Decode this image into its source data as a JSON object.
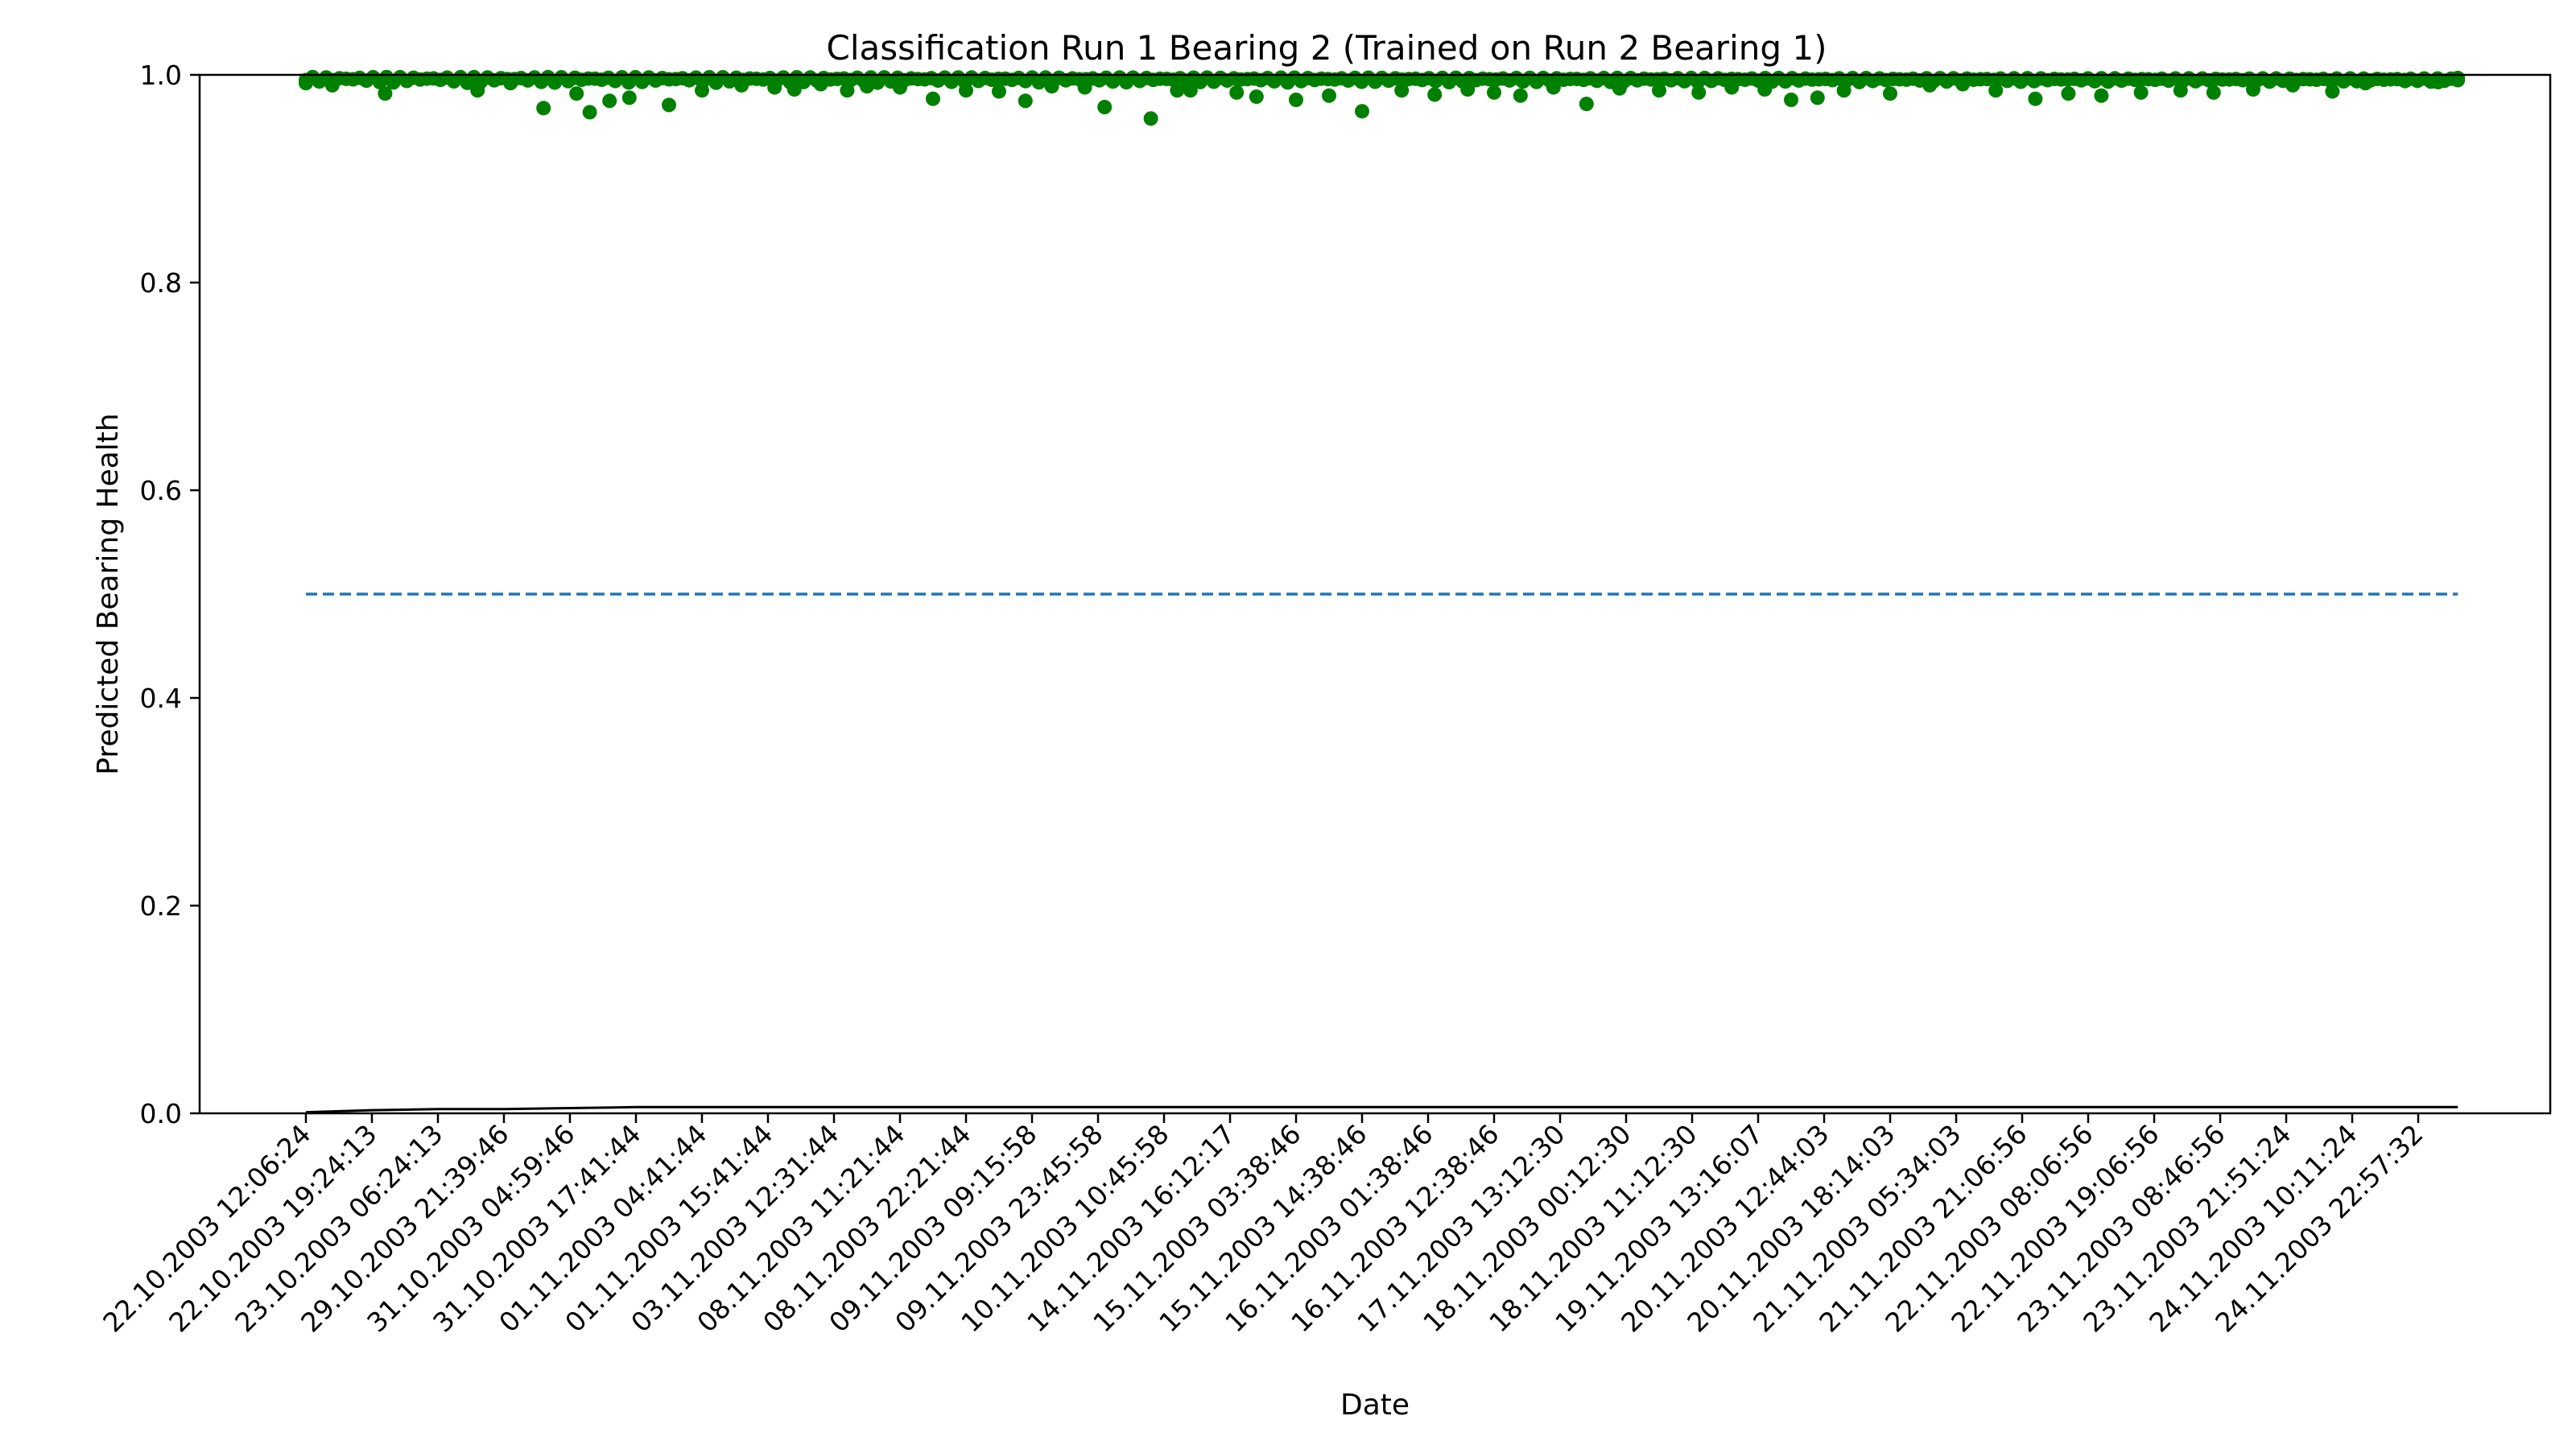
{
  "chart_data": {
    "type": "scatter",
    "title": "Classification Run 1 Bearing 2 (Trained on Run 2 Bearing 1)",
    "xlabel": "Date",
    "ylabel": "Predicted Bearing Health",
    "ylim": [
      0.0,
      1.0
    ],
    "yticks": [
      "0.0",
      "0.2",
      "0.4",
      "0.6",
      "0.8",
      "1.0"
    ],
    "xticks": [
      "22.10.2003 12:06:24",
      "22.10.2003 19:24:13",
      "23.10.2003 06:24:13",
      "29.10.2003 21:39:46",
      "31.10.2003 04:59:46",
      "31.10.2003 17:41:44",
      "01.11.2003 04:41:44",
      "01.11.2003 15:41:44",
      "03.11.2003 12:31:44",
      "08.11.2003 11:21:44",
      "08.11.2003 22:21:44",
      "09.11.2003 09:15:58",
      "09.11.2003 23:45:58",
      "10.11.2003 10:45:58",
      "14.11.2003 16:12:17",
      "15.11.2003 03:38:46",
      "15.11.2003 14:38:46",
      "16.11.2003 01:38:46",
      "16.11.2003 12:38:46",
      "17.11.2003 13:12:30",
      "18.11.2003 00:12:30",
      "18.11.2003 11:12:30",
      "19.11.2003 13:16:07",
      "20.11.2003 12:44:03",
      "20.11.2003 18:14:03",
      "21.11.2003 05:34:03",
      "21.11.2003 21:06:56",
      "22.11.2003 08:06:56",
      "22.11.2003 19:06:56",
      "23.11.2003 08:46:56",
      "23.11.2003 21:51:24",
      "24.11.2003 10:11:24",
      "24.11.2003 22:57:32"
    ],
    "grid": false,
    "threshold": {
      "value": 0.5,
      "style": "dashed",
      "color": "#1f77b4"
    },
    "series": [
      {
        "type": "scatter",
        "color": "#008000",
        "x_index": [
          0,
          0.4,
          1.2,
          2.6,
          3.1,
          3.6,
          4.1,
          4.3,
          4.6,
          4.9,
          5.5,
          6.0,
          6.6,
          7.1,
          7.4,
          7.8,
          8.2,
          8.5,
          9.0,
          9.5,
          10.0,
          10.5,
          10.9,
          11.3,
          11.8,
          12.1,
          12.8,
          13.2,
          13.4,
          14.1,
          14.4,
          15.0,
          15.5,
          16.0,
          16.6,
          17.1,
          17.6,
          18.0,
          18.4,
          18.9,
          19.4,
          19.9,
          20.5,
          21.1,
          21.6,
          22.1,
          22.5,
          22.9,
          23.3,
          24.0,
          24.6,
          25.1,
          25.6,
          26.2,
          26.7,
          27.2,
          27.8,
          28.4,
          28.9,
          29.5,
          30.1,
          30.7,
          31.2,
          31.8,
          32.3,
          32.6
        ],
        "values": [
          0.995,
          0.99,
          0.982,
          0.985,
          0.992,
          0.968,
          0.982,
          0.964,
          0.975,
          0.978,
          0.971,
          0.985,
          0.99,
          0.988,
          0.986,
          0.991,
          0.985,
          0.989,
          0.988,
          0.977,
          0.985,
          0.984,
          0.975,
          0.989,
          0.988,
          0.969,
          0.958,
          0.985,
          0.985,
          0.983,
          0.979,
          0.976,
          0.98,
          0.965,
          0.985,
          0.981,
          0.986,
          0.983,
          0.98,
          0.988,
          0.972,
          0.987,
          0.985,
          0.983,
          0.988,
          0.986,
          0.976,
          0.978,
          0.985,
          0.982,
          0.99,
          0.991,
          0.985,
          0.977,
          0.982,
          0.98,
          0.983,
          0.985,
          0.983,
          0.986,
          0.99,
          0.984,
          0.992,
          0.994,
          0.993,
          0.997
        ]
      },
      {
        "type": "line",
        "color": "#000000",
        "x_index": [
          0,
          1,
          2,
          3,
          4,
          5,
          8,
          12,
          16,
          20,
          24,
          28,
          32,
          32.6
        ],
        "values": [
          0.001,
          0.003,
          0.004,
          0.004,
          0.005,
          0.006,
          0.006,
          0.006,
          0.006,
          0.006,
          0.006,
          0.006,
          0.006,
          0.006
        ]
      }
    ]
  }
}
